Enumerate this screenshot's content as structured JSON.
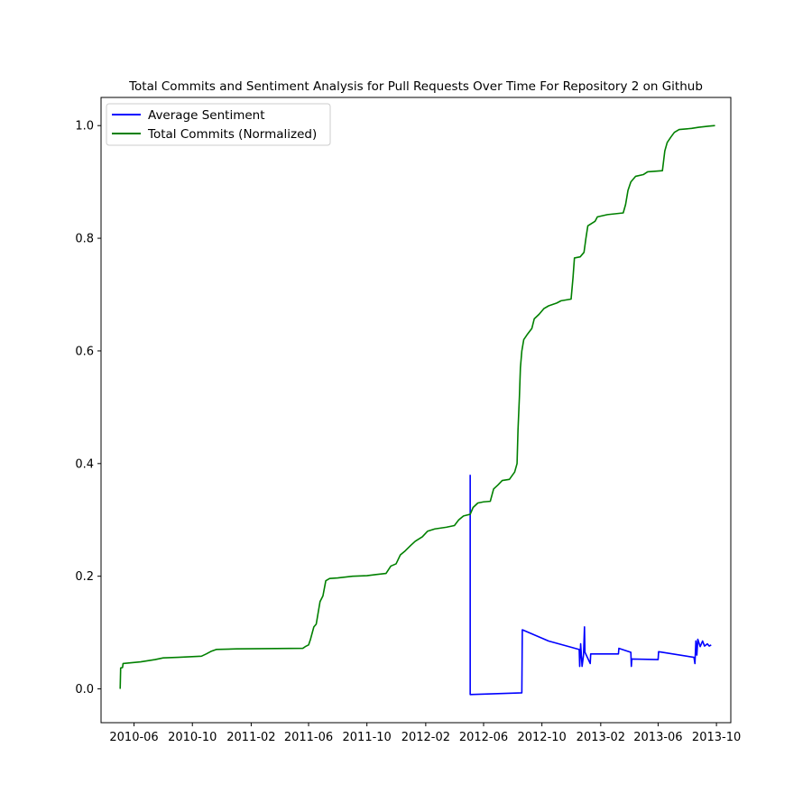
{
  "chart_data": {
    "type": "line",
    "title": "Total Commits and Sentiment Analysis for Pull Requests Over Time For Repository 2 on Github",
    "xlabel": "",
    "ylabel": "",
    "x_ticks": [
      "2010-06",
      "2010-10",
      "2011-02",
      "2011-06",
      "2011-10",
      "2012-02",
      "2012-06",
      "2012-10",
      "2013-02",
      "2013-06",
      "2013-10"
    ],
    "xlim": [
      "2010-03-24",
      "2013-10-31"
    ],
    "ylim": [
      -0.06,
      1.05
    ],
    "y_ticks": [
      "0.0",
      "0.2",
      "0.4",
      "0.6",
      "0.8",
      "1.0"
    ],
    "grid": false,
    "legend_position": "top-left",
    "series": [
      {
        "name": "Average Sentiment",
        "color": "#0000ff",
        "points": [
          [
            "2012-05-04",
            0.38
          ],
          [
            "2012-05-04",
            -0.01
          ],
          [
            "2012-08-20",
            -0.007
          ],
          [
            "2012-08-21",
            0.105
          ],
          [
            "2012-10-15",
            0.085
          ],
          [
            "2012-12-18",
            0.07
          ],
          [
            "2012-12-19",
            0.04
          ],
          [
            "2012-12-21",
            0.08
          ],
          [
            "2012-12-24",
            0.04
          ],
          [
            "2012-12-27",
            0.06
          ],
          [
            "2012-12-29",
            0.11
          ],
          [
            "2012-12-30",
            0.065
          ],
          [
            "2013-01-10",
            0.045
          ],
          [
            "2013-01-11",
            0.062
          ],
          [
            "2013-03-10",
            0.062
          ],
          [
            "2013-03-11",
            0.072
          ],
          [
            "2013-04-05",
            0.065
          ],
          [
            "2013-04-06",
            0.04
          ],
          [
            "2013-04-07",
            0.053
          ],
          [
            "2013-06-01",
            0.052
          ],
          [
            "2013-06-02",
            0.066
          ],
          [
            "2013-08-15",
            0.056
          ],
          [
            "2013-08-17",
            0.045
          ],
          [
            "2013-08-19",
            0.085
          ],
          [
            "2013-08-21",
            0.06
          ],
          [
            "2013-08-23",
            0.088
          ],
          [
            "2013-08-28",
            0.075
          ],
          [
            "2013-09-02",
            0.085
          ],
          [
            "2013-09-06",
            0.076
          ],
          [
            "2013-09-12",
            0.08
          ],
          [
            "2013-09-16",
            0.076
          ],
          [
            "2013-09-20",
            0.078
          ]
        ]
      },
      {
        "name": "Total Commits (Normalized)",
        "color": "#008000",
        "points": [
          [
            "2010-05-03",
            0.0
          ],
          [
            "2010-05-04",
            0.037
          ],
          [
            "2010-05-08",
            0.038
          ],
          [
            "2010-05-09",
            0.045
          ],
          [
            "2010-06-15",
            0.048
          ],
          [
            "2010-07-15",
            0.052
          ],
          [
            "2010-08-01",
            0.055
          ],
          [
            "2010-09-01",
            0.056
          ],
          [
            "2010-10-20",
            0.058
          ],
          [
            "2010-10-30",
            0.062
          ],
          [
            "2010-11-10",
            0.067
          ],
          [
            "2010-11-20",
            0.07
          ],
          [
            "2011-01-01",
            0.071
          ],
          [
            "2011-05-20",
            0.072
          ],
          [
            "2011-05-25",
            0.075
          ],
          [
            "2011-06-01",
            0.078
          ],
          [
            "2011-06-05",
            0.088
          ],
          [
            "2011-06-12",
            0.11
          ],
          [
            "2011-06-17",
            0.115
          ],
          [
            "2011-06-20",
            0.13
          ],
          [
            "2011-06-25",
            0.155
          ],
          [
            "2011-07-01",
            0.165
          ],
          [
            "2011-07-07",
            0.192
          ],
          [
            "2011-07-15",
            0.196
          ],
          [
            "2011-08-01",
            0.197
          ],
          [
            "2011-09-01",
            0.2
          ],
          [
            "2011-10-01",
            0.201
          ],
          [
            "2011-10-20",
            0.203
          ],
          [
            "2011-11-10",
            0.205
          ],
          [
            "2011-11-20",
            0.218
          ],
          [
            "2011-12-01",
            0.222
          ],
          [
            "2011-12-10",
            0.238
          ],
          [
            "2011-12-20",
            0.245
          ],
          [
            "2012-01-01",
            0.255
          ],
          [
            "2012-01-10",
            0.262
          ],
          [
            "2012-01-25",
            0.27
          ],
          [
            "2012-02-05",
            0.28
          ],
          [
            "2012-02-20",
            0.284
          ],
          [
            "2012-03-15",
            0.287
          ],
          [
            "2012-04-01",
            0.29
          ],
          [
            "2012-04-10",
            0.3
          ],
          [
            "2012-04-20",
            0.307
          ],
          [
            "2012-05-04",
            0.31
          ],
          [
            "2012-05-10",
            0.322
          ],
          [
            "2012-05-20",
            0.33
          ],
          [
            "2012-06-01",
            0.332
          ],
          [
            "2012-06-15",
            0.333
          ],
          [
            "2012-06-22",
            0.355
          ],
          [
            "2012-07-01",
            0.362
          ],
          [
            "2012-07-10",
            0.37
          ],
          [
            "2012-07-25",
            0.372
          ],
          [
            "2012-08-05",
            0.385
          ],
          [
            "2012-08-10",
            0.4
          ],
          [
            "2012-08-12",
            0.46
          ],
          [
            "2012-08-15",
            0.52
          ],
          [
            "2012-08-17",
            0.57
          ],
          [
            "2012-08-20",
            0.6
          ],
          [
            "2012-08-24",
            0.62
          ],
          [
            "2012-09-01",
            0.63
          ],
          [
            "2012-09-10",
            0.64
          ],
          [
            "2012-09-15",
            0.657
          ],
          [
            "2012-09-25",
            0.665
          ],
          [
            "2012-10-05",
            0.675
          ],
          [
            "2012-10-15",
            0.68
          ],
          [
            "2012-11-01",
            0.685
          ],
          [
            "2012-11-10",
            0.689
          ],
          [
            "2012-12-01",
            0.692
          ],
          [
            "2012-12-05",
            0.73
          ],
          [
            "2012-12-08",
            0.765
          ],
          [
            "2012-12-20",
            0.767
          ],
          [
            "2012-12-28",
            0.775
          ],
          [
            "2013-01-01",
            0.8
          ],
          [
            "2013-01-05",
            0.822
          ],
          [
            "2013-01-20",
            0.83
          ],
          [
            "2013-01-25",
            0.838
          ],
          [
            "2013-02-15",
            0.842
          ],
          [
            "2013-03-20",
            0.845
          ],
          [
            "2013-03-25",
            0.86
          ],
          [
            "2013-03-30",
            0.885
          ],
          [
            "2013-04-05",
            0.9
          ],
          [
            "2013-04-15",
            0.91
          ],
          [
            "2013-05-01",
            0.913
          ],
          [
            "2013-05-10",
            0.918
          ],
          [
            "2013-06-10",
            0.92
          ],
          [
            "2013-06-15",
            0.955
          ],
          [
            "2013-06-20",
            0.97
          ],
          [
            "2013-06-28",
            0.98
          ],
          [
            "2013-07-05",
            0.988
          ],
          [
            "2013-07-15",
            0.993
          ],
          [
            "2013-08-10",
            0.995
          ],
          [
            "2013-08-25",
            0.997
          ],
          [
            "2013-09-15",
            0.999
          ],
          [
            "2013-09-28",
            1.0
          ]
        ]
      }
    ]
  }
}
